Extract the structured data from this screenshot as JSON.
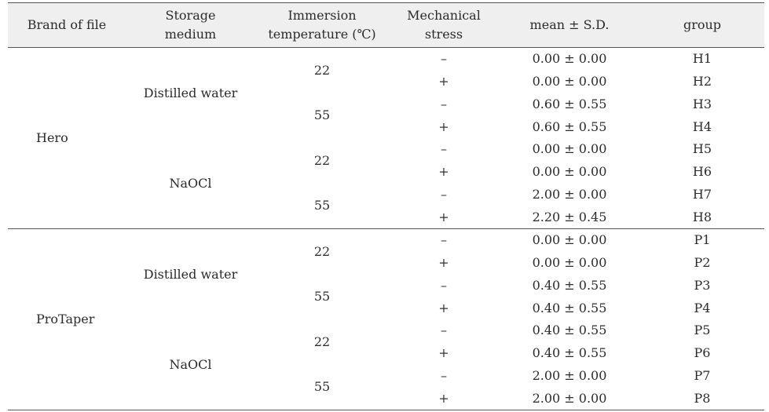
{
  "table": {
    "headers": {
      "brand": "Brand of file",
      "medium_line1": "Storage",
      "medium_line2": "medium",
      "temp_line1": "Immersion",
      "temp_line2": "temperature (℃)",
      "stress_line1": "Mechanical",
      "stress_line2": "stress",
      "mean": "mean ± S.D.",
      "group": "group"
    },
    "blocks": [
      {
        "brand": "Hero",
        "media": [
          {
            "name": "Distilled water",
            "temps": [
              {
                "temp": "22",
                "rows": [
                  {
                    "stress": "–",
                    "mean": "0.00 ± 0.00",
                    "group": "H1"
                  },
                  {
                    "stress": "+",
                    "mean": "0.00 ± 0.00",
                    "group": "H2"
                  }
                ]
              },
              {
                "temp": "55",
                "rows": [
                  {
                    "stress": "–",
                    "mean": "0.60 ± 0.55",
                    "group": "H3"
                  },
                  {
                    "stress": "+",
                    "mean": "0.60 ± 0.55",
                    "group": "H4"
                  }
                ]
              }
            ]
          },
          {
            "name": "NaOCl",
            "temps": [
              {
                "temp": "22",
                "rows": [
                  {
                    "stress": "–",
                    "mean": "0.00 ± 0.00",
                    "group": "H5"
                  },
                  {
                    "stress": "+",
                    "mean": "0.00 ± 0.00",
                    "group": "H6"
                  }
                ]
              },
              {
                "temp": "55",
                "rows": [
                  {
                    "stress": "–",
                    "mean": "2.00 ± 0.00",
                    "group": "H7"
                  },
                  {
                    "stress": "+",
                    "mean": "2.20 ± 0.45",
                    "group": "H8"
                  }
                ]
              }
            ]
          }
        ]
      },
      {
        "brand": "ProTaper",
        "media": [
          {
            "name": "Distilled water",
            "temps": [
              {
                "temp": "22",
                "rows": [
                  {
                    "stress": "–",
                    "mean": "0.00 ± 0.00",
                    "group": "P1"
                  },
                  {
                    "stress": "+",
                    "mean": "0.00 ± 0.00",
                    "group": "P2"
                  }
                ]
              },
              {
                "temp": "55",
                "rows": [
                  {
                    "stress": "–",
                    "mean": "0.40 ± 0.55",
                    "group": "P3"
                  },
                  {
                    "stress": "+",
                    "mean": "0.40 ± 0.55",
                    "group": "P4"
                  }
                ]
              }
            ]
          },
          {
            "name": "NaOCl",
            "temps": [
              {
                "temp": "22",
                "rows": [
                  {
                    "stress": "–",
                    "mean": "0.40 ± 0.55",
                    "group": "P5"
                  },
                  {
                    "stress": "+",
                    "mean": "0.40 ± 0.55",
                    "group": "P6"
                  }
                ]
              },
              {
                "temp": "55",
                "rows": [
                  {
                    "stress": "–",
                    "mean": "2.00 ± 0.00",
                    "group": "P7"
                  },
                  {
                    "stress": "+",
                    "mean": "2.00 ± 0.00",
                    "group": "P8"
                  }
                ]
              }
            ]
          }
        ]
      }
    ]
  }
}
